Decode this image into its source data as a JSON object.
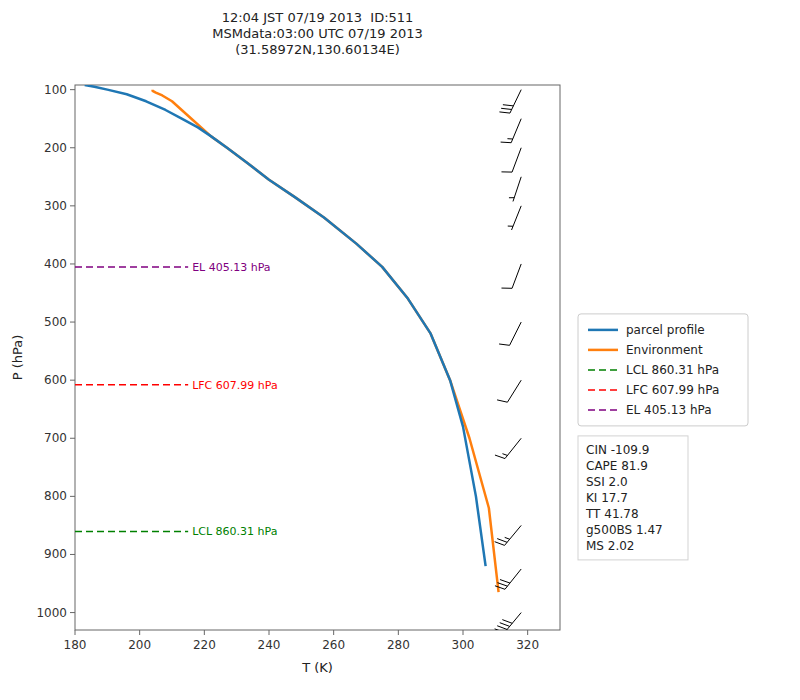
{
  "chart_data": {
    "type": "line",
    "title": "12:04 JST 07/19 2013  ID:511\nMSMdata:03:00 UTC 07/19 2013\n(31.58972N,130.60134E)",
    "x_label": "T (K)",
    "y_label": "P (hPa)",
    "xlim": [
      180,
      330
    ],
    "ylim": [
      1030,
      92
    ],
    "xticks": [
      180,
      200,
      220,
      240,
      260,
      280,
      300,
      320
    ],
    "yticks": [
      100,
      200,
      300,
      400,
      500,
      600,
      700,
      800,
      900,
      1000
    ],
    "grid": false,
    "legend": "right",
    "series": [
      {
        "name": "parcel profile",
        "color": "#1f77b4",
        "line_style": "solid",
        "x": [
          183,
          186,
          190,
          196,
          202,
          208,
          213,
          218,
          222,
          227,
          233,
          240,
          248,
          257,
          267,
          275,
          283,
          290,
          296,
          300,
          304,
          307
        ],
        "values": [
          92,
          95,
          100,
          108,
          120,
          135,
          150,
          165,
          180,
          200,
          225,
          255,
          285,
          320,
          365,
          405,
          460,
          520,
          600,
          680,
          800,
          920
        ]
      },
      {
        "name": "Environment",
        "color": "#ff7f0e",
        "line_style": "solid",
        "x": [
          204,
          204,
          205,
          207,
          210,
          213,
          216,
          219,
          222,
          227,
          233,
          240,
          248,
          257,
          267,
          275,
          283,
          290,
          296,
          302,
          308,
          311
        ],
        "values": [
          100,
          102,
          105,
          110,
          120,
          135,
          150,
          165,
          180,
          200,
          225,
          255,
          285,
          320,
          365,
          405,
          460,
          520,
          600,
          700,
          820,
          965
        ]
      },
      {
        "name": "LCL 860.31 hPa",
        "color": "green",
        "line_style": "dashed",
        "x": [
          180,
          215
        ],
        "values": [
          860.31,
          860.31
        ]
      },
      {
        "name": "LFC 607.99 hPa",
        "color": "red",
        "line_style": "dashed",
        "x": [
          180,
          215
        ],
        "values": [
          607.99,
          607.99
        ]
      },
      {
        "name": "EL 405.13 hPa",
        "color": "purple",
        "line_style": "dashed",
        "x": [
          180,
          215
        ],
        "values": [
          405.13,
          405.13
        ]
      }
    ],
    "text_box": [
      "CIN -109.9",
      "CAPE 81.9",
      "SSI 2.0",
      "KI 17.7",
      "TT 41.78",
      "g500BS 1.47",
      "MS 2.02"
    ],
    "wind_barbs": {
      "x": 318,
      "p": [
        100,
        150,
        200,
        250,
        300,
        400,
        500,
        600,
        700,
        850,
        925,
        1000
      ],
      "u": [
        12,
        5,
        3,
        2,
        2,
        3,
        5,
        5,
        8,
        15,
        20,
        25
      ],
      "v": [
        25,
        12,
        8,
        6,
        5,
        8,
        10,
        8,
        10,
        18,
        25,
        30
      ]
    }
  }
}
